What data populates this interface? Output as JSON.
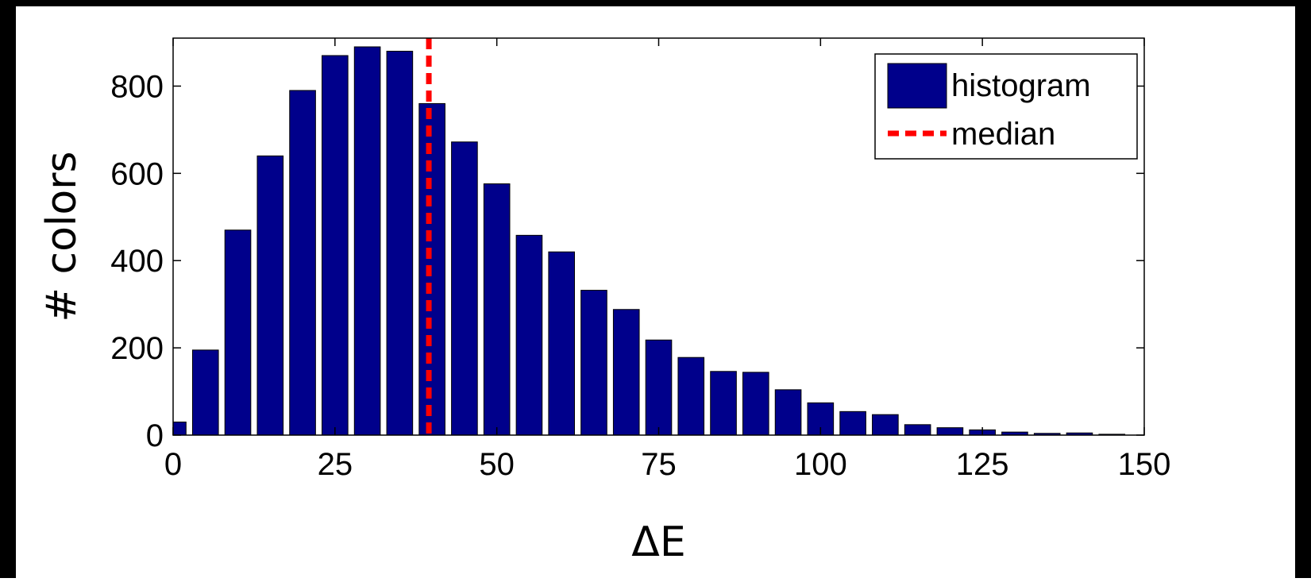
{
  "chart_data": {
    "type": "bar",
    "title": "",
    "xlabel": "ΔE",
    "ylabel": "# colors",
    "x": [
      0,
      5,
      10,
      15,
      20,
      25,
      30,
      35,
      40,
      45,
      50,
      55,
      60,
      65,
      70,
      75,
      80,
      85,
      90,
      95,
      100,
      105,
      110,
      115,
      120,
      125,
      130,
      135,
      140,
      145
    ],
    "values": [
      30,
      195,
      470,
      640,
      790,
      870,
      890,
      880,
      760,
      672,
      576,
      458,
      420,
      332,
      288,
      218,
      178,
      146,
      144,
      104,
      74,
      54,
      47,
      24,
      17,
      12,
      7,
      4,
      5,
      2
    ],
    "xlim": [
      0,
      150
    ],
    "ylim": [
      0,
      910
    ],
    "xticks": [
      "0",
      "25",
      "50",
      "75",
      "100",
      "125",
      "150"
    ],
    "yticks": [
      "0",
      "200",
      "400",
      "600",
      "800"
    ],
    "median": 39.5,
    "legend": {
      "placement": "top-right",
      "entries": [
        "histogram",
        "median"
      ]
    },
    "colors": {
      "bar": "#00008b",
      "median": "#ff0000"
    },
    "grid": false
  }
}
